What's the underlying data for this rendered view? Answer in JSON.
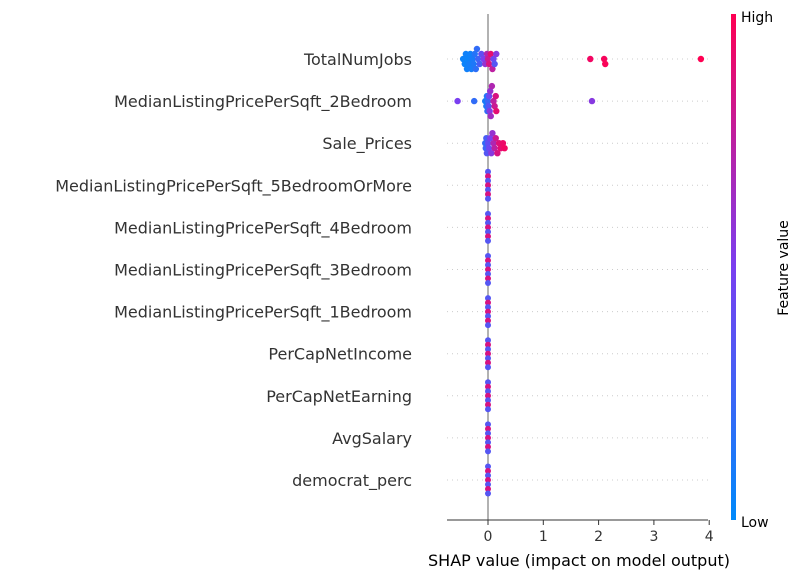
{
  "chart_data": {
    "type": "scatter",
    "subtype": "shap-beeswarm",
    "xlabel": "SHAP value (impact on model output)",
    "xlim": [
      -0.75,
      4.05
    ],
    "x_ticks": [
      "0",
      "1",
      "2",
      "3",
      "4"
    ],
    "colorbar": {
      "label": "Feature value",
      "high": "High",
      "low": "Low"
    },
    "colors": {
      "low": "#008afb",
      "high": "#ff0052",
      "zero_line": "#999999",
      "row_line": "#cccccc"
    },
    "features": [
      {
        "name": "TotalNumJobs",
        "points": [
          {
            "x": -0.45,
            "v": 0.05
          },
          {
            "x": -0.42,
            "v": 0.05
          },
          {
            "x": -0.4,
            "v": 0.06
          },
          {
            "x": -0.38,
            "v": 0.07
          },
          {
            "x": -0.36,
            "v": 0.05
          },
          {
            "x": -0.34,
            "v": 0.08
          },
          {
            "x": -0.32,
            "v": 0.06
          },
          {
            "x": -0.3,
            "v": 0.09
          },
          {
            "x": -0.28,
            "v": 0.1
          },
          {
            "x": -0.26,
            "v": 0.12
          },
          {
            "x": -0.24,
            "v": 0.15
          },
          {
            "x": -0.22,
            "v": 0.18
          },
          {
            "x": -0.2,
            "v": 0.2
          },
          {
            "x": -0.18,
            "v": 0.25
          },
          {
            "x": -0.15,
            "v": 0.3
          },
          {
            "x": -0.12,
            "v": 0.4
          },
          {
            "x": -0.08,
            "v": 0.5
          },
          {
            "x": -0.05,
            "v": 0.6
          },
          {
            "x": -0.02,
            "v": 0.7
          },
          {
            "x": 0.0,
            "v": 0.8
          },
          {
            "x": 0.02,
            "v": 0.85
          },
          {
            "x": 0.05,
            "v": 0.9
          },
          {
            "x": 0.08,
            "v": 0.75
          },
          {
            "x": 0.1,
            "v": 0.45
          },
          {
            "x": 0.12,
            "v": 0.35
          },
          {
            "x": 0.15,
            "v": 0.55
          },
          {
            "x": 1.85,
            "v": 0.95
          },
          {
            "x": 2.1,
            "v": 0.97
          },
          {
            "x": 2.12,
            "v": 0.98
          },
          {
            "x": 3.85,
            "v": 1.0
          }
        ]
      },
      {
        "name": "MedianListingPricePerSqft_2Bedroom",
        "points": [
          {
            "x": -0.55,
            "v": 0.5
          },
          {
            "x": -0.25,
            "v": 0.2
          },
          {
            "x": -0.05,
            "v": 0.1
          },
          {
            "x": -0.03,
            "v": 0.12
          },
          {
            "x": -0.02,
            "v": 0.15
          },
          {
            "x": -0.01,
            "v": 0.2
          },
          {
            "x": 0.0,
            "v": 0.25
          },
          {
            "x": 0.01,
            "v": 0.35
          },
          {
            "x": 0.02,
            "v": 0.45
          },
          {
            "x": 0.03,
            "v": 0.55
          },
          {
            "x": 0.04,
            "v": 0.6
          },
          {
            "x": 0.05,
            "v": 0.65
          },
          {
            "x": 0.07,
            "v": 0.7
          },
          {
            "x": 0.1,
            "v": 0.75
          },
          {
            "x": 0.12,
            "v": 0.8
          },
          {
            "x": 0.14,
            "v": 0.85
          },
          {
            "x": 0.15,
            "v": 0.9
          },
          {
            "x": 1.88,
            "v": 0.55
          }
        ]
      },
      {
        "name": "Sale_Prices",
        "points": [
          {
            "x": -0.05,
            "v": 0.2
          },
          {
            "x": -0.04,
            "v": 0.25
          },
          {
            "x": -0.03,
            "v": 0.3
          },
          {
            "x": -0.02,
            "v": 0.35
          },
          {
            "x": 0.0,
            "v": 0.4
          },
          {
            "x": 0.02,
            "v": 0.45
          },
          {
            "x": 0.04,
            "v": 0.5
          },
          {
            "x": 0.06,
            "v": 0.55
          },
          {
            "x": 0.08,
            "v": 0.6
          },
          {
            "x": 0.1,
            "v": 0.7
          },
          {
            "x": 0.12,
            "v": 0.75
          },
          {
            "x": 0.14,
            "v": 0.8
          },
          {
            "x": 0.17,
            "v": 0.85
          },
          {
            "x": 0.2,
            "v": 0.88
          },
          {
            "x": 0.23,
            "v": 0.9
          },
          {
            "x": 0.27,
            "v": 0.93
          },
          {
            "x": 0.3,
            "v": 0.95
          }
        ]
      },
      {
        "name": "MedianListingPricePerSqft_5BedroomOrMore",
        "points": [
          {
            "x": 0.0,
            "v": 0.5
          }
        ]
      },
      {
        "name": "MedianListingPricePerSqft_4Bedroom",
        "points": [
          {
            "x": 0.0,
            "v": 0.5
          }
        ]
      },
      {
        "name": "MedianListingPricePerSqft_3Bedroom",
        "points": [
          {
            "x": 0.0,
            "v": 0.5
          }
        ]
      },
      {
        "name": "MedianListingPricePerSqft_1Bedroom",
        "points": [
          {
            "x": 0.0,
            "v": 0.5
          }
        ]
      },
      {
        "name": "PerCapNetIncome",
        "points": [
          {
            "x": 0.0,
            "v": 0.5
          }
        ]
      },
      {
        "name": "PerCapNetEarning",
        "points": [
          {
            "x": 0.0,
            "v": 0.5
          }
        ]
      },
      {
        "name": "AvgSalary",
        "points": [
          {
            "x": 0.0,
            "v": 0.5
          }
        ]
      },
      {
        "name": "democrat_perc",
        "points": [
          {
            "x": 0.0,
            "v": 0.5
          }
        ]
      }
    ]
  }
}
